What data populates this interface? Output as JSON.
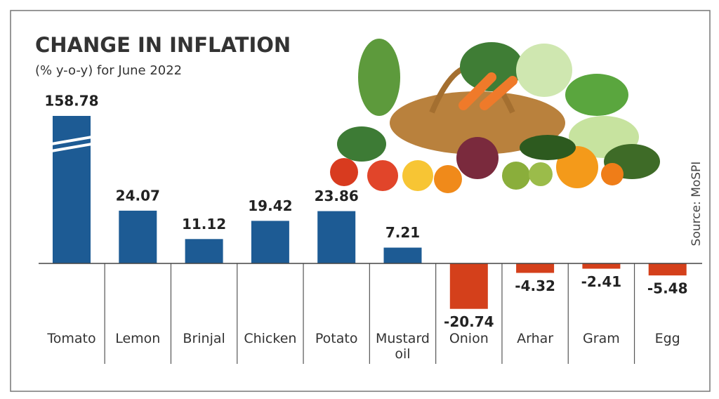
{
  "chart_data": {
    "type": "bar",
    "title": "CHANGE IN INFLATION",
    "subtitle": "(% y-o-y) for June 2022",
    "source": "Source: MoSPI",
    "categories": [
      "Tomato",
      "Lemon",
      "Brinjal",
      "Chicken",
      "Potato",
      "Mustard oil",
      "Onion",
      "Arhar",
      "Gram",
      "Egg"
    ],
    "values": [
      158.78,
      24.07,
      11.12,
      19.42,
      23.86,
      7.21,
      -20.74,
      -4.32,
      -2.41,
      -5.48
    ],
    "positive_color": "#1d5b94",
    "negative_color": "#d4401b"
  }
}
